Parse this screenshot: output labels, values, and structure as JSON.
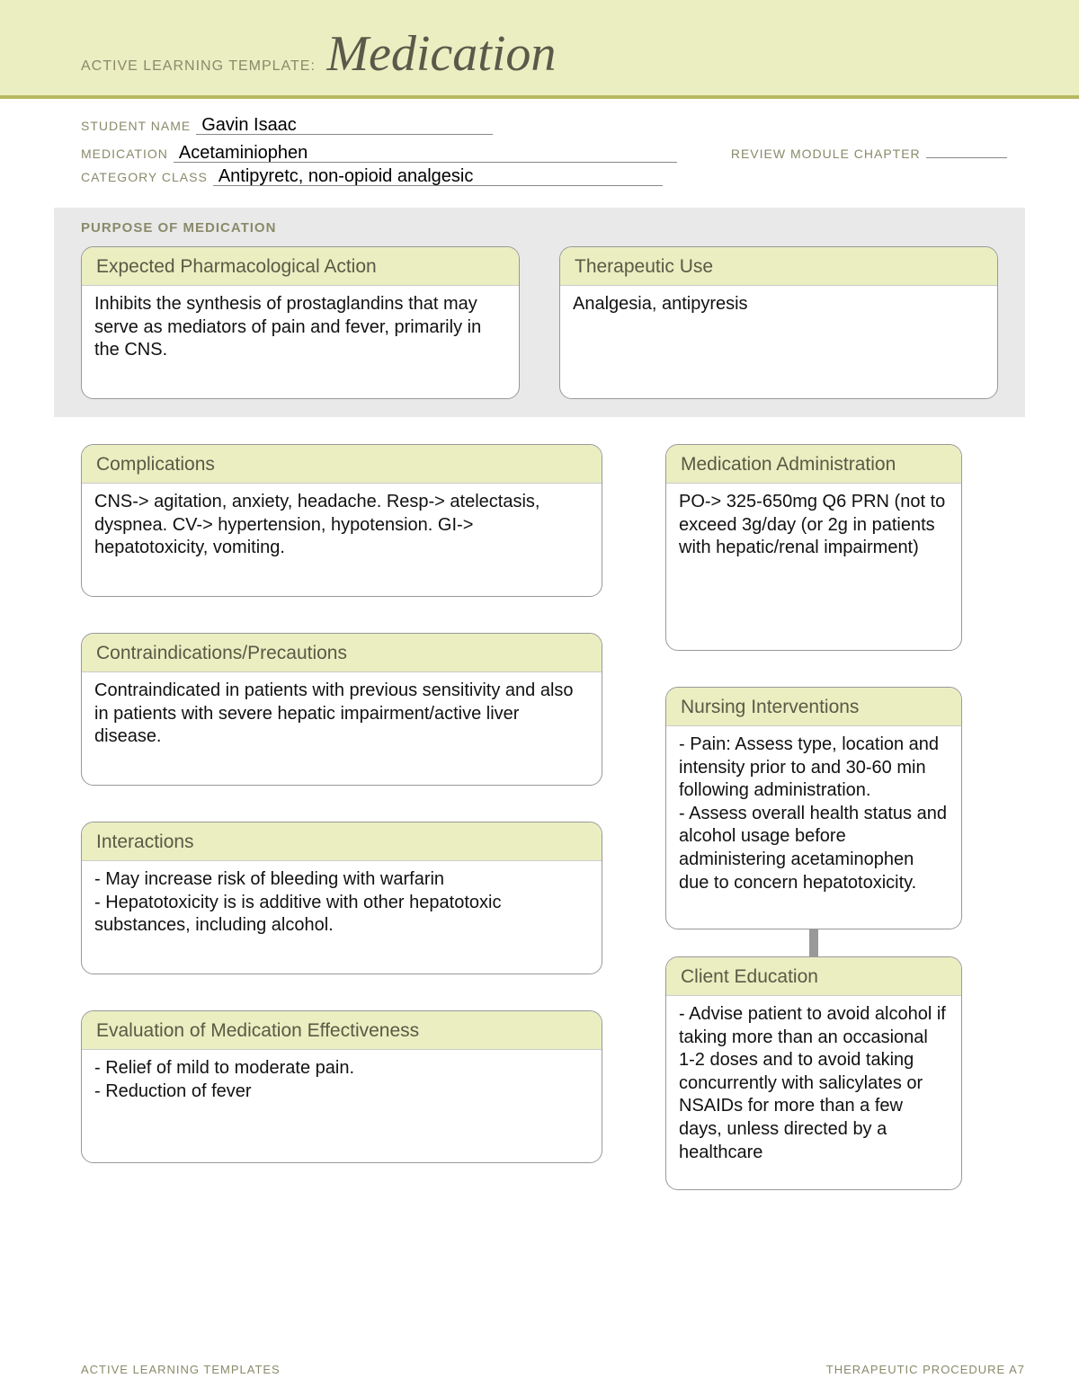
{
  "header": {
    "prefix": "ACTIVE LEARNING TEMPLATE:",
    "title": "Medication"
  },
  "meta": {
    "student_label": "STUDENT NAME",
    "student_value": "Gavin Isaac",
    "medication_label": "MEDICATION",
    "medication_value": "Acetaminiophen",
    "review_label": "REVIEW MODULE CHAPTER",
    "review_value": "",
    "category_label": "CATEGORY CLASS",
    "category_value": "Antipyretc, non-opioid analgesic"
  },
  "purpose": {
    "section_title": "PURPOSE OF MEDICATION",
    "action": {
      "title": "Expected Pharmacological Action",
      "body": "Inhibits the synthesis of prostaglandins that may serve as mediators of pain and fever, primarily in the CNS."
    },
    "use": {
      "title": "Therapeutic Use",
      "body": "Analgesia, antipyresis"
    }
  },
  "boxes": {
    "complications": {
      "title": "Complications",
      "body": "CNS-> agitation, anxiety, headache. Resp-> atelectasis, dyspnea. CV-> hypertension, hypotension. GI-> hepatotoxicity, vomiting."
    },
    "admin": {
      "title": "Medication Administration",
      "body": "PO-> 325-650mg Q6 PRN (not to exceed 3g/day (or 2g in patients with hepatic/renal impairment)"
    },
    "contra": {
      "title": "Contraindications/Precautions",
      "body": "Contraindicated in patients with previous sensitivity and also in patients with severe hepatic impairment/active liver disease."
    },
    "nursing": {
      "title": "Nursing Interventions",
      "body": "- Pain: Assess type, location and intensity prior to and 30-60 min following administration.\n- Assess overall health status and alcohol usage before administering acetaminophen due to concern hepatotoxicity."
    },
    "interactions": {
      "title": "Interactions",
      "body": "- May increase risk of bleeding with warfarin\n- Hepatotoxicity is is additive with other hepatotoxic substances, including alcohol."
    },
    "client_ed": {
      "title": "Client Education",
      "body": "- Advise patient to avoid alcohol if taking more than an occasional 1-2 doses and to avoid taking concurrently with salicylates or NSAIDs for more than a few days, unless directed by a healthcare"
    },
    "evaluation": {
      "title": "Evaluation of Medication Effectiveness",
      "body": "- Relief of mild to moderate pain.\n- Reduction of fever"
    }
  },
  "footer": {
    "left": "ACTIVE LEARNING TEMPLATES",
    "right": "THERAPEUTIC PROCEDURE   A7"
  },
  "colors": {
    "band_bg": "#eaeec1",
    "band_border": "#b8b85f",
    "box_head_bg": "#eaeec1",
    "box_border": "#999999",
    "purpose_bg": "#e9e9e9",
    "label_color": "#8a8a6a",
    "title_color": "#5a5a4a"
  }
}
